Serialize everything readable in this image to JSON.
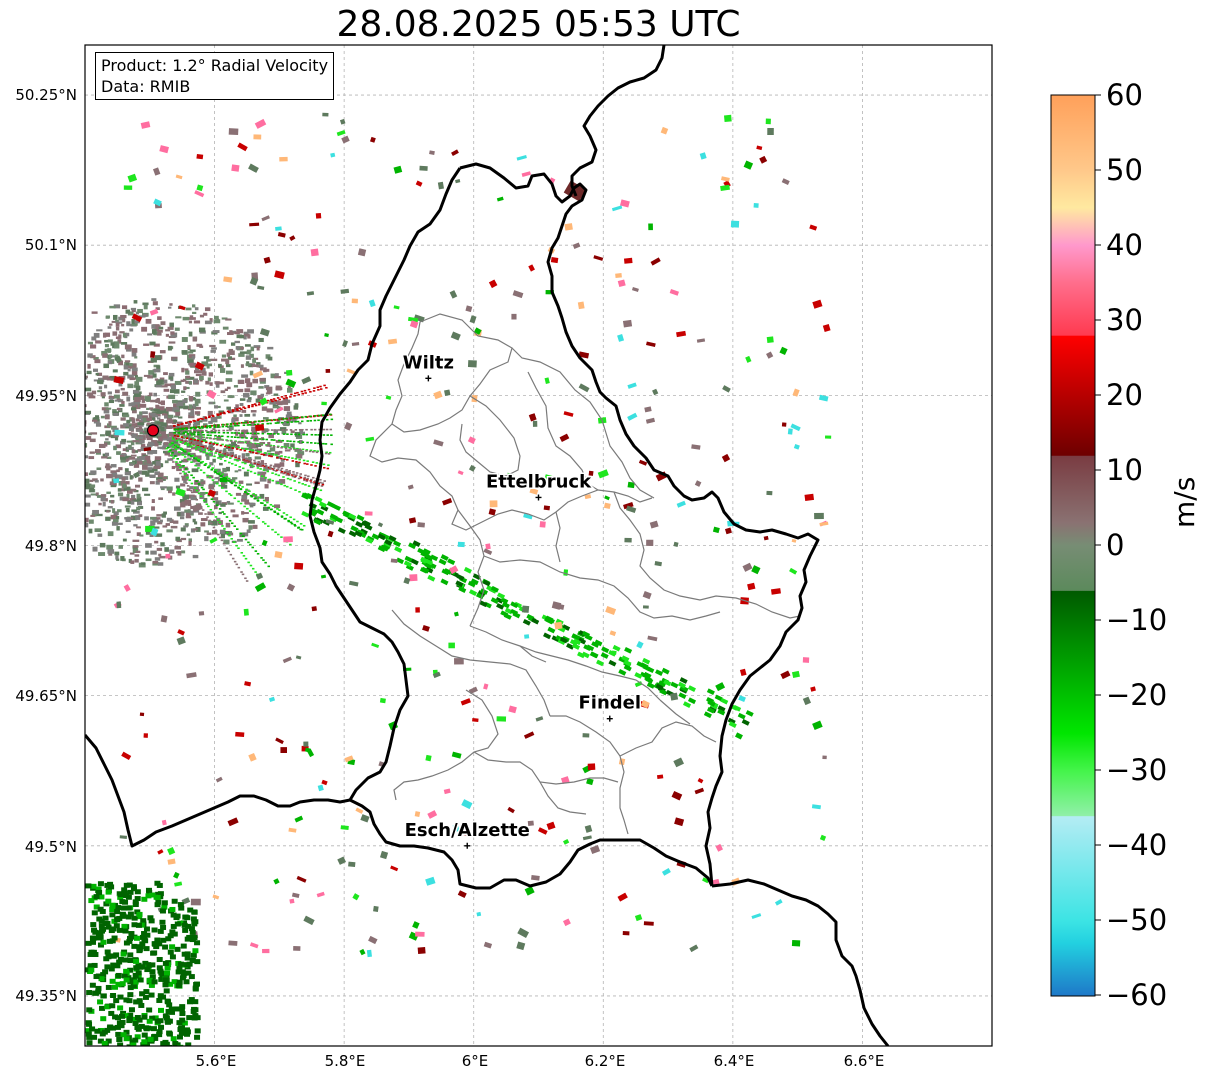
{
  "title": "28.08.2025 05:53 UTC",
  "product_box": {
    "line1": "Product: 1.2° Radial Velocity",
    "line2": "Data: RMIB"
  },
  "axes": {
    "lat_ticks": [
      "50.25°N",
      "50.1°N",
      "49.95°N",
      "49.8°N",
      "49.65°N",
      "49.5°N",
      "49.35°N"
    ],
    "lon_ticks": [
      "5.6°E",
      "5.8°E",
      "6°E",
      "6.2°E",
      "6.4°E",
      "6.6°E"
    ],
    "lat_values": [
      50.25,
      50.1,
      49.95,
      49.8,
      49.65,
      49.5,
      49.35
    ],
    "lon_values": [
      5.6,
      5.8,
      6.0,
      6.2,
      6.4,
      6.6
    ],
    "lon_range": [
      5.4,
      6.8
    ],
    "lat_range": [
      49.3,
      50.3
    ],
    "grid": true
  },
  "cities": [
    {
      "name": "Wiltz",
      "lon": 5.93,
      "lat": 49.967
    },
    {
      "name": "Ettelbruck",
      "lon": 6.1,
      "lat": 49.848
    },
    {
      "name": "Findel",
      "lon": 6.21,
      "lat": 49.627
    },
    {
      "name": "Esch/Alzette",
      "lon": 5.99,
      "lat": 49.5
    }
  ],
  "radar_site": {
    "lon": 5.505,
    "lat": 49.915,
    "color": "#e8001c"
  },
  "colorbar": {
    "label": "m/s",
    "ticks": [
      "60",
      "50",
      "40",
      "30",
      "20",
      "10",
      "0",
      "−10",
      "−20",
      "−30",
      "−40",
      "−50",
      "−60"
    ],
    "range": [
      -60,
      60
    ],
    "stops": [
      {
        "v": 60,
        "color": "#ffa05a"
      },
      {
        "v": 50,
        "color": "#ffc88a"
      },
      {
        "v": 45,
        "color": "#ffe9a0"
      },
      {
        "v": 40,
        "color": "#ff99cc"
      },
      {
        "v": 35,
        "color": "#ff6e8c"
      },
      {
        "v": 28,
        "color": "#ff3a50"
      },
      {
        "v": 27.9,
        "color": "#ff0000"
      },
      {
        "v": 12,
        "color": "#6e0000"
      },
      {
        "v": 11.9,
        "color": "#7a3c42"
      },
      {
        "v": 3,
        "color": "#8a7272"
      },
      {
        "v": 0,
        "color": "#778d74"
      },
      {
        "v": -6,
        "color": "#5c8a5c"
      },
      {
        "v": -6.1,
        "color": "#005a00"
      },
      {
        "v": -25,
        "color": "#00e600"
      },
      {
        "v": -30,
        "color": "#44f44a"
      },
      {
        "v": -36,
        "color": "#90f0a8"
      },
      {
        "v": -36.1,
        "color": "#b4ecf4"
      },
      {
        "v": -50,
        "color": "#3ce4e4"
      },
      {
        "v": -53,
        "color": "#22d0e0"
      },
      {
        "v": -60,
        "color": "#1e78c8"
      }
    ]
  },
  "colors": {
    "border": "#000000",
    "canton": "#7a7a7a",
    "grid": "#b4b4b4",
    "green_dark": "#006400",
    "green_mid": "#00b400",
    "green_bright": "#1ee61e",
    "grey_pink": "#8a7074",
    "grey_green": "#5e7a5e",
    "red": "#c80000",
    "cyan": "#3ce0e0",
    "pink": "#ff6ea0",
    "orange": "#ffb878"
  }
}
